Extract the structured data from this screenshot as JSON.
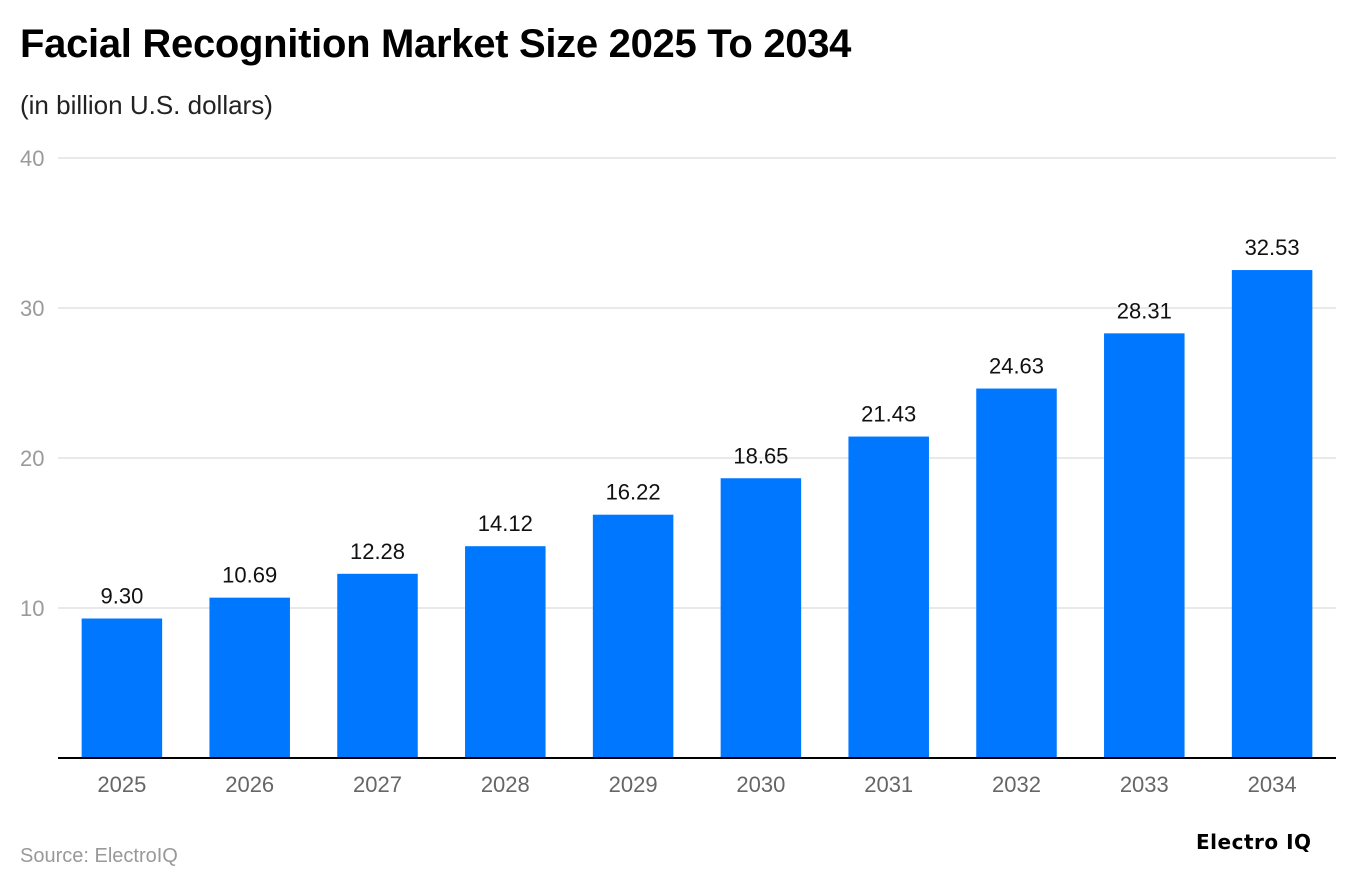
{
  "chart_data": {
    "type": "bar",
    "title": "Facial Recognition Market Size 2025 To 2034",
    "subtitle": "(in billion U.S. dollars)",
    "categories": [
      "2025",
      "2026",
      "2027",
      "2028",
      "2029",
      "2030",
      "2031",
      "2032",
      "2033",
      "2034"
    ],
    "values": [
      9.3,
      10.69,
      12.28,
      14.12,
      16.22,
      18.65,
      21.43,
      24.63,
      28.31,
      32.53
    ],
    "value_labels": [
      "9.30",
      "10.69",
      "12.28",
      "14.12",
      "16.22",
      "18.65",
      "21.43",
      "24.63",
      "28.31",
      "32.53"
    ],
    "yticks": [
      "10",
      "20",
      "30",
      "40"
    ],
    "ylim": [
      0,
      40
    ],
    "grid": true,
    "legend": "none",
    "bar_color": "#0077ff"
  },
  "source": "Source: ElectroIQ",
  "brand": "Electro IQ"
}
